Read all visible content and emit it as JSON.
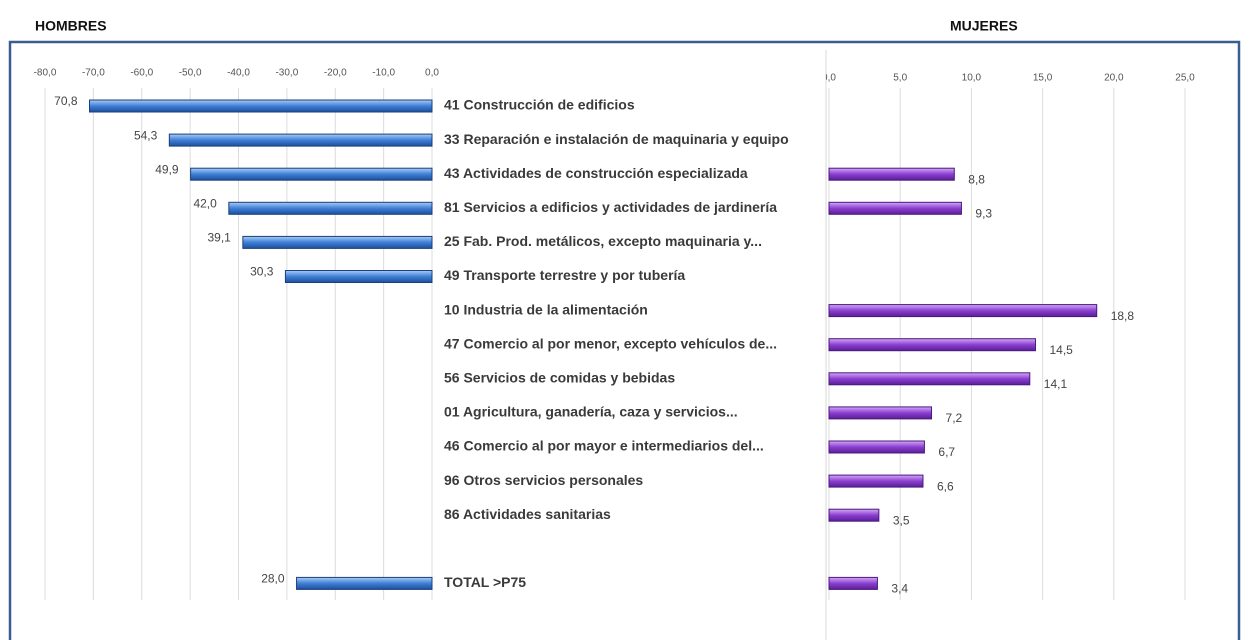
{
  "chart_data": [
    {
      "type": "bar",
      "orientation": "horizontal",
      "title": "HOMBRES",
      "categories": [
        "41 Construcción de edificios",
        "33 Reparación e instalación de maquinaria y equipo",
        "43 Actividades de construcción especializada",
        "81 Servicios a edificios y actividades de jardinería",
        "25 Fab. Prod. metálicos, excepto maquinaria y...",
        "49 Transporte terrestre y por tubería",
        "10 Industria de la alimentación",
        "47 Comercio al por menor, excepto vehículos de...",
        "56 Servicios de comidas y bebidas",
        "01 Agricultura, ganadería, caza y servicios...",
        "46 Comercio al por mayor e intermediarios del...",
        "96 Otros servicios personales",
        "86 Actividades sanitarias",
        null,
        "TOTAL >P75"
      ],
      "values": [
        -70.8,
        -54.3,
        -49.9,
        -42.0,
        -39.1,
        -30.3,
        null,
        null,
        null,
        null,
        null,
        null,
        null,
        null,
        -28.0
      ],
      "value_labels": [
        "70,8",
        "54,3",
        "49,9",
        "42,0",
        "39,1",
        "30,3",
        null,
        null,
        null,
        null,
        null,
        null,
        null,
        null,
        "28,0"
      ],
      "color": "#3f7fd6",
      "xlim": [
        -80,
        0
      ],
      "xticks": [
        {
          "value": -80,
          "label": "-80,0"
        },
        {
          "value": -70,
          "label": "-70,0"
        },
        {
          "value": -60,
          "label": "-60,0"
        },
        {
          "value": -50,
          "label": "-50,0"
        },
        {
          "value": -40,
          "label": "-40,0"
        },
        {
          "value": -30,
          "label": "-30,0"
        },
        {
          "value": -20,
          "label": "-20,0"
        },
        {
          "value": -10,
          "label": "-10,0"
        },
        {
          "value": 0,
          "label": "0,0"
        }
      ],
      "grid": true
    },
    {
      "type": "bar",
      "orientation": "horizontal",
      "title": "MUJERES",
      "values": [
        null,
        null,
        8.8,
        9.3,
        null,
        null,
        18.8,
        14.5,
        14.1,
        7.2,
        6.7,
        6.6,
        3.5,
        null,
        3.4
      ],
      "value_labels": [
        null,
        null,
        "8,8",
        "9,3",
        null,
        null,
        "18,8",
        "14,5",
        "14,1",
        "7,2",
        "6,7",
        "6,6",
        "3,5",
        null,
        "3,4"
      ],
      "color": "#8b3fd1",
      "xlim": [
        0,
        25
      ],
      "xticks": [
        {
          "value": 0,
          "label": "0,0"
        },
        {
          "value": 5,
          "label": "5,0"
        },
        {
          "value": 10,
          "label": "10,0"
        },
        {
          "value": 15,
          "label": "15,0"
        },
        {
          "value": 20,
          "label": "20,0"
        },
        {
          "value": 25,
          "label": "25,0"
        }
      ],
      "grid": true
    }
  ]
}
